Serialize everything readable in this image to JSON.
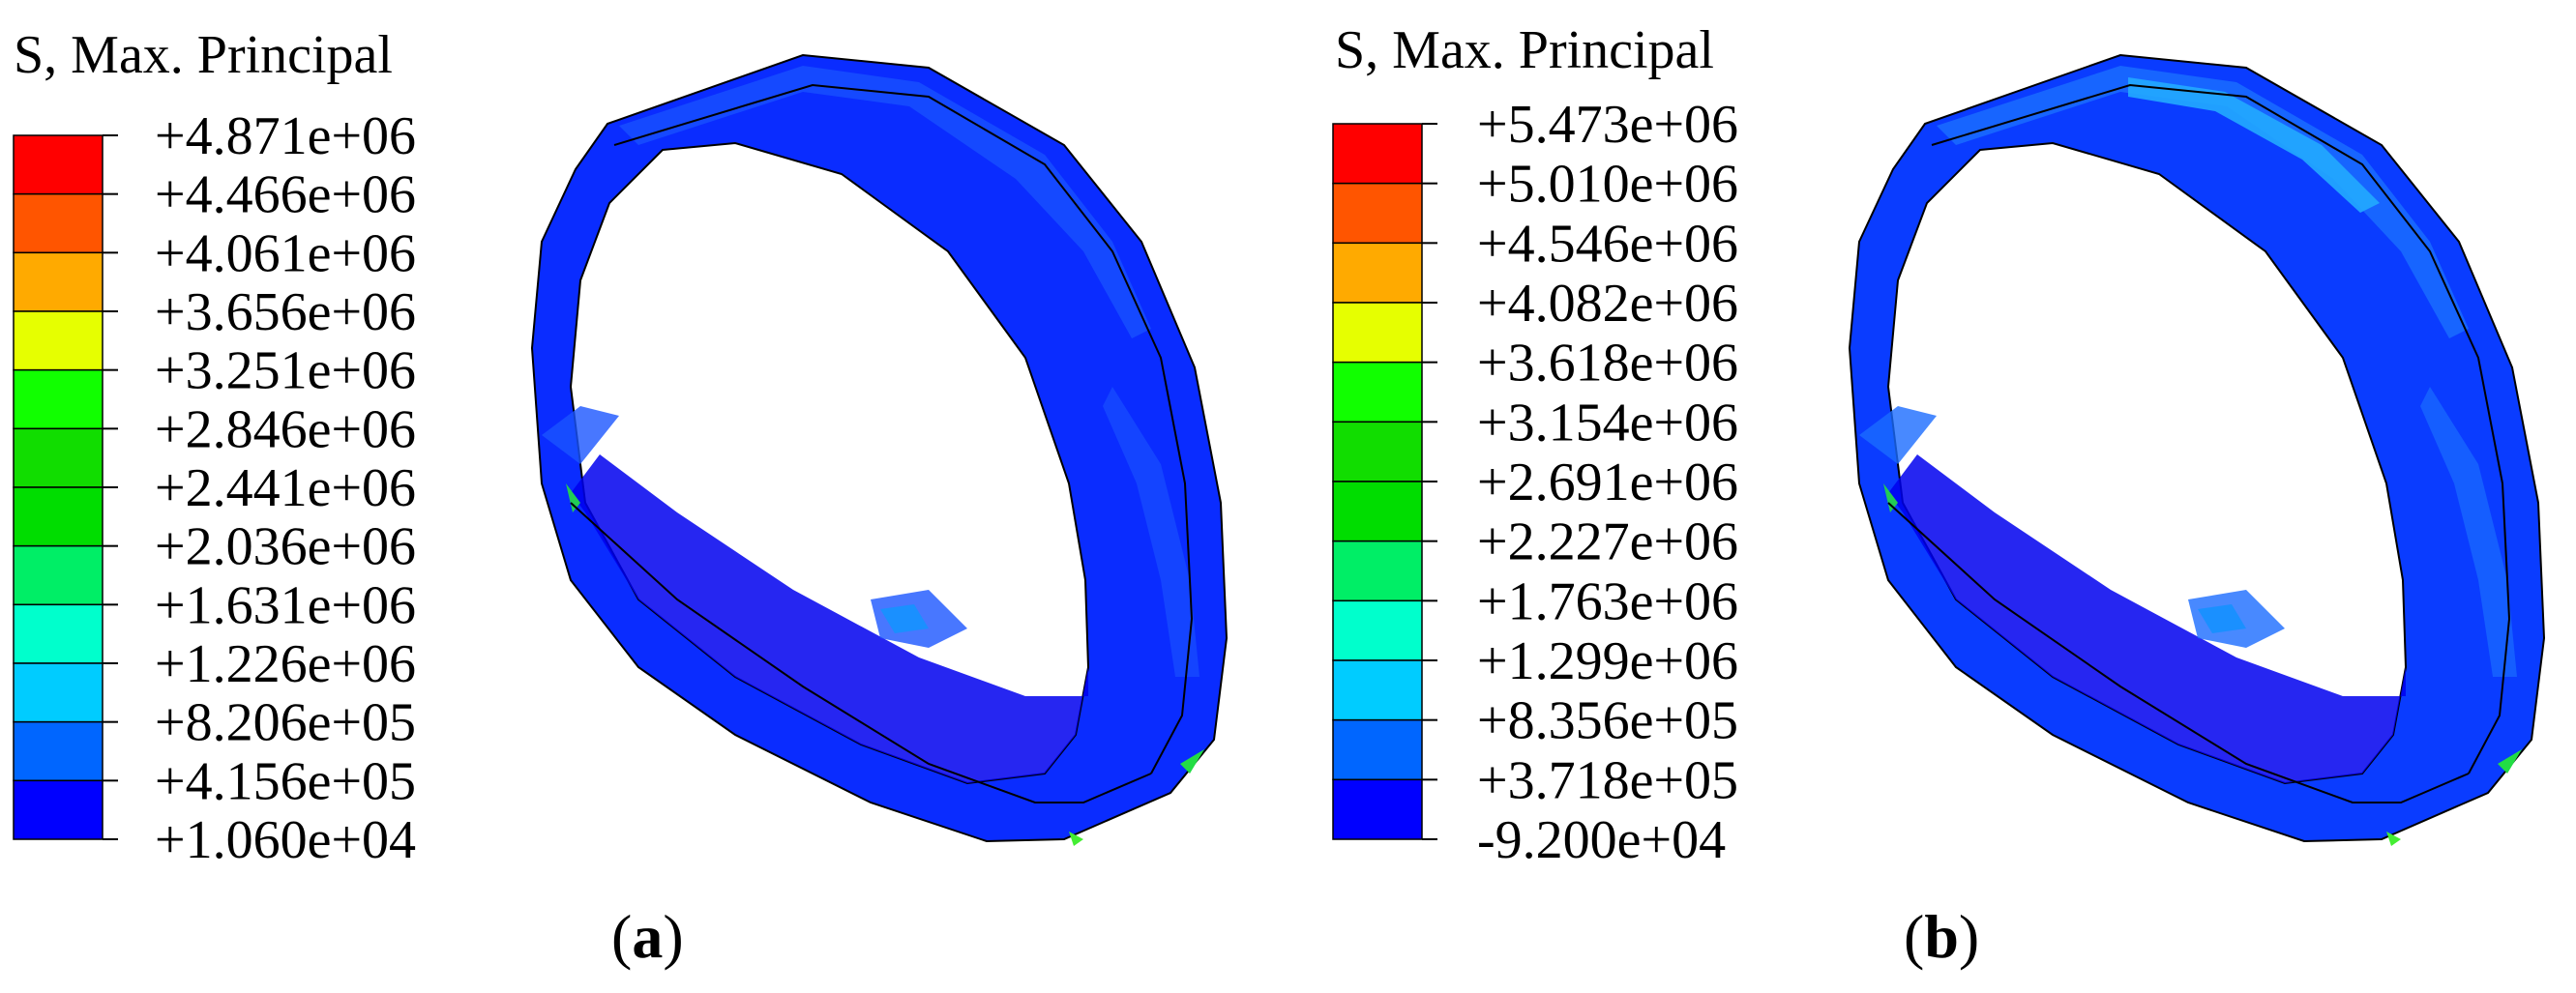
{
  "panels": [
    {
      "id": "a",
      "legend_title": "S, Max. Principal",
      "tick_labels": [
        "+4.871e+06",
        "+4.466e+06",
        "+4.061e+06",
        "+3.656e+06",
        "+3.251e+06",
        "+2.846e+06",
        "+2.441e+06",
        "+2.036e+06",
        "+1.631e+06",
        "+1.226e+06",
        "+8.206e+05",
        "+4.156e+05",
        "+1.060e+04"
      ],
      "caption_open": "(",
      "caption_letter": "a",
      "caption_close": ")"
    },
    {
      "id": "b",
      "legend_title": "S, Max. Principal",
      "tick_labels": [
        "+5.473e+06",
        "+5.010e+06",
        "+4.546e+06",
        "+4.082e+06",
        "+3.618e+06",
        "+3.154e+06",
        "+2.691e+06",
        "+2.227e+06",
        "+1.763e+06",
        "+1.299e+06",
        "+8.356e+05",
        "+3.718e+05",
        "-9.200e+04"
      ],
      "caption_open": "(",
      "caption_letter": "b",
      "caption_close": ")"
    }
  ],
  "colormap": [
    "#ff0000",
    "#ff5500",
    "#ffaa00",
    "#e6ff00",
    "#11ff00",
    "#11dd00",
    "#00dd00",
    "#00ee66",
    "#00ffcc",
    "#00ccff",
    "#0066ff",
    "#0000ff"
  ],
  "colors": {
    "background": "#ffffff",
    "outline": "#000000"
  }
}
